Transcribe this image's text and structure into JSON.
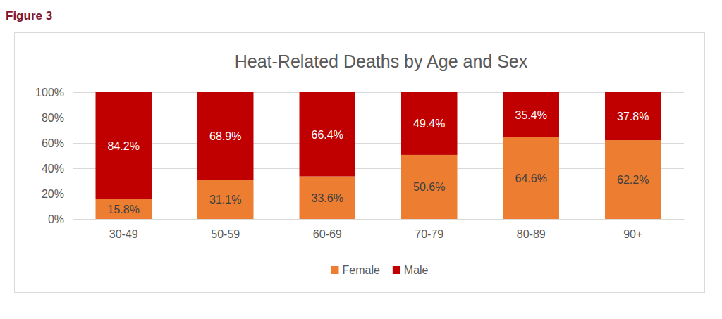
{
  "chart_data": {
    "type": "bar",
    "title": "Heat-Related Deaths by Age and Sex",
    "annotations": [
      {
        "text": "Figure 3"
      }
    ],
    "stacked": true,
    "grid": true,
    "legend": "bottom",
    "data_labels": true,
    "categories": [
      "30-49",
      "50-59",
      "60-69",
      "70-79",
      "80-89",
      "90+"
    ],
    "series": [
      {
        "name": "Female",
        "color": "#ed7d31",
        "values": [
          15.8,
          31.1,
          33.6,
          50.6,
          64.6,
          62.2
        ],
        "value_labels": [
          "15.8%",
          "31.1%",
          "33.6%",
          "50.6%",
          "64.6%",
          "62.2%"
        ]
      },
      {
        "name": "Male",
        "color": "#c00000",
        "values": [
          84.2,
          68.9,
          66.4,
          49.4,
          35.4,
          37.8
        ],
        "value_labels": [
          "84.2%",
          "68.9%",
          "66.4%",
          "49.4%",
          "35.4%",
          "37.8%"
        ]
      }
    ],
    "ylim": [
      0,
      100
    ],
    "yticks": [
      {
        "value": 0,
        "label": "0%"
      },
      {
        "value": 20,
        "label": "20%"
      },
      {
        "value": 40,
        "label": "40%"
      },
      {
        "value": 60,
        "label": "60%"
      },
      {
        "value": 80,
        "label": "80%"
      },
      {
        "value": 100,
        "label": "100%"
      }
    ]
  }
}
